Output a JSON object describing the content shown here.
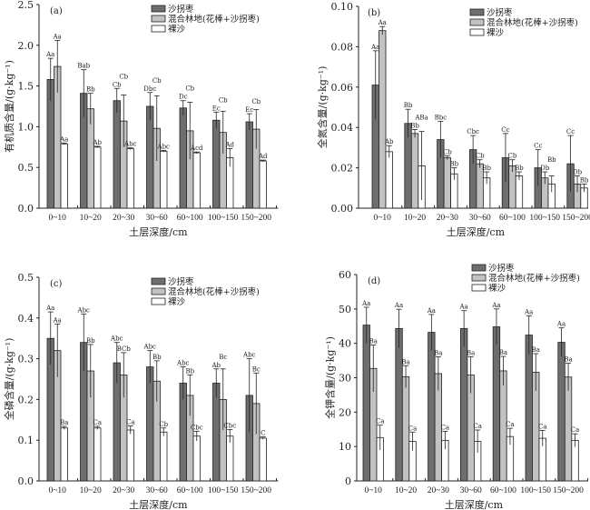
{
  "legend": [
    "沙拐枣",
    "混合林地(花棒+沙拐枣)",
    "裸沙"
  ],
  "colors": {
    "s1": "#6e6e6e",
    "s2": "#c2c2c2",
    "s3": "#ffffff",
    "stroke": "#222222"
  },
  "chart_data": [
    {
      "type": "bar",
      "panel": "(a)",
      "xlabel": "土层深度/cm",
      "ylabel": "有机质含量/(g·kg⁻¹)",
      "ylim": [
        0,
        2.5
      ],
      "yticks": [
        "0.0",
        "0.5",
        "1.0",
        "1.5",
        "2.0",
        "2.5"
      ],
      "ytick_values": [
        0,
        0.5,
        1,
        1.5,
        2,
        2.5
      ],
      "categories": [
        "0~10",
        "10~20",
        "20~30",
        "30~60",
        "60~100",
        "100~150",
        "150~200"
      ],
      "legend_placement": "top-right",
      "series": [
        {
          "name": "沙拐枣",
          "values": [
            1.58,
            1.41,
            1.32,
            1.25,
            1.23,
            1.08,
            1.06
          ],
          "errors": [
            0.26,
            0.29,
            0.15,
            0.17,
            0.09,
            0.1,
            0.1
          ],
          "labels": [
            "Aa",
            "Bab",
            "Cb",
            "Dbc",
            "Dc",
            "Ec",
            "Ec"
          ]
        },
        {
          "name": "混合林地(花棒+沙拐枣)",
          "values": [
            1.74,
            1.22,
            1.07,
            0.98,
            0.95,
            0.93,
            0.97
          ],
          "errors": [
            0.32,
            0.19,
            0.32,
            0.4,
            0.35,
            0.26,
            0.24
          ],
          "labels": [
            "Aa",
            "Bb",
            "Cb",
            "Cb",
            "Cb",
            "Cb",
            "Cb"
          ]
        },
        {
          "name": "裸沙",
          "values": [
            0.79,
            0.75,
            0.73,
            0.7,
            0.68,
            0.62,
            0.58
          ],
          "errors": [
            0.01,
            0.01,
            0.01,
            0.01,
            0.01,
            0.11,
            0.01
          ],
          "labels": [
            "Aa",
            "Ab",
            "Abc",
            "Abc",
            "Acd",
            "Ad",
            "Ad"
          ]
        }
      ]
    },
    {
      "type": "bar",
      "panel": "(b)",
      "xlabel": "土层深度/cm",
      "ylabel": "全氮含量/(g·kg⁻¹)",
      "ylim": [
        0,
        0.1
      ],
      "yticks": [
        "0.00",
        "0.02",
        "0.04",
        "0.06",
        "0.08",
        "0.10"
      ],
      "ytick_values": [
        0,
        0.02,
        0.04,
        0.06,
        0.08,
        0.1
      ],
      "categories": [
        "0~10",
        "10~20",
        "20~30",
        "30~60",
        "60~100",
        "100~150",
        "150~200"
      ],
      "legend_placement": "top-right",
      "series": [
        {
          "name": "沙拐枣",
          "values": [
            0.061,
            0.042,
            0.034,
            0.029,
            0.025,
            0.02,
            0.022
          ],
          "errors": [
            0.017,
            0.007,
            0.009,
            0.007,
            0.012,
            0.009,
            0.014
          ],
          "labels": [
            "Aa",
            "Bb",
            "Bbc",
            "Cbc",
            "Cc",
            "Cc",
            "Cc"
          ]
        },
        {
          "name": "混合林地(花棒+沙拐枣)",
          "values": [
            0.088,
            0.037,
            0.025,
            0.022,
            0.021,
            0.015,
            0.012
          ],
          "errors": [
            0.002,
            0.002,
            0.001,
            0.002,
            0.003,
            0.003,
            0.004
          ],
          "labels": [
            "Aa",
            "Bb",
            "Cb",
            "Cb",
            "Cb",
            "Db",
            "Db"
          ]
        },
        {
          "name": "裸沙",
          "values": [
            0.028,
            0.021,
            0.017,
            0.015,
            0.016,
            0.012,
            0.01
          ],
          "errors": [
            0.003,
            0.017,
            0.003,
            0.003,
            0.002,
            0.004,
            0.002
          ],
          "labels": [
            "Ab",
            "ABa",
            "Bb",
            "Bb",
            "Bb",
            "Bb",
            "Bb"
          ]
        }
      ]
    },
    {
      "type": "bar",
      "panel": "(c)",
      "xlabel": "土层深度/cm",
      "ylabel": "全磷含量/(g·kg⁻¹)",
      "ylim": [
        0,
        0.5
      ],
      "yticks": [
        "0.0",
        "0.1",
        "0.2",
        "0.3",
        "0.4",
        "0.5"
      ],
      "ytick_values": [
        0,
        0.1,
        0.2,
        0.3,
        0.4,
        0.5
      ],
      "categories": [
        "0~10",
        "10~20",
        "20~30",
        "30~60",
        "60~100",
        "100~150",
        "150~200"
      ],
      "legend_placement": "top-right",
      "series": [
        {
          "name": "沙拐枣",
          "values": [
            0.35,
            0.34,
            0.29,
            0.28,
            0.24,
            0.24,
            0.21
          ],
          "errors": [
            0.065,
            0.07,
            0.05,
            0.04,
            0.04,
            0.035,
            0.09
          ],
          "labels": [
            "Aa",
            "Abc",
            "Abc",
            "Abc",
            "Abc",
            "Ab",
            "Abc"
          ]
        },
        {
          "name": "混合林地(花棒+沙拐枣)",
          "values": [
            0.32,
            0.27,
            0.26,
            0.245,
            0.21,
            0.2,
            0.19
          ],
          "errors": [
            0.065,
            0.065,
            0.055,
            0.05,
            0.05,
            0.075,
            0.075
          ],
          "labels": [
            "Aa",
            "Bb",
            "BCb",
            "Bb",
            "Bb",
            "Bc",
            "Bc"
          ]
        },
        {
          "name": "裸沙",
          "values": [
            0.13,
            0.13,
            0.125,
            0.12,
            0.11,
            0.11,
            0.105
          ],
          "errors": [
            0.004,
            0.004,
            0.01,
            0.01,
            0.012,
            0.016,
            0.003
          ],
          "labels": [
            "Ba",
            "Ca",
            "Ca",
            "Cb",
            "Cbc",
            "Cbc",
            "C"
          ]
        }
      ]
    },
    {
      "type": "bar",
      "panel": "(d)",
      "xlabel": "土层深度/cm",
      "ylabel": "全钾含量/(g·kg⁻¹)",
      "ylim": [
        0,
        60
      ],
      "yticks": [
        "0",
        "10",
        "20",
        "30",
        "40",
        "50",
        "60"
      ],
      "ytick_values": [
        0,
        10,
        20,
        30,
        40,
        50,
        60
      ],
      "categories": [
        "0~10",
        "10~20",
        "20~30",
        "30~60",
        "60~100",
        "100~150",
        "150~200"
      ],
      "legend_placement": "top-right",
      "series": [
        {
          "name": "沙拐枣",
          "values": [
            45.3,
            44.3,
            43.2,
            44.3,
            44.8,
            42.4,
            40.3
          ],
          "errors": [
            5.2,
            5.6,
            5.2,
            5.2,
            5.2,
            5.6,
            4.2
          ],
          "labels": [
            "Aa",
            "Aa",
            "Aa",
            "Aa",
            "Aa",
            "Aa",
            "Aa"
          ]
        },
        {
          "name": "混合林地(花棒+沙拐枣)",
          "values": [
            32.7,
            30.3,
            31.2,
            30.8,
            32.0,
            31.6,
            30.2
          ],
          "errors": [
            6.8,
            3.2,
            4.9,
            5.3,
            4.2,
            5.4,
            4.0
          ],
          "labels": [
            "Ba",
            "Ba",
            "Ba",
            "Ba",
            "Ba",
            "Ba",
            "Ba"
          ]
        },
        {
          "name": "裸沙",
          "values": [
            12.6,
            11.5,
            11.8,
            11.5,
            12.9,
            12.4,
            11.8
          ],
          "errors": [
            3.6,
            2.7,
            2.6,
            3.3,
            2.4,
            2.3,
            1.9
          ],
          "labels": [
            "Ca",
            "Ca",
            "Ca",
            "Ca",
            "Ca",
            "Ca",
            "Ca"
          ]
        }
      ]
    }
  ]
}
